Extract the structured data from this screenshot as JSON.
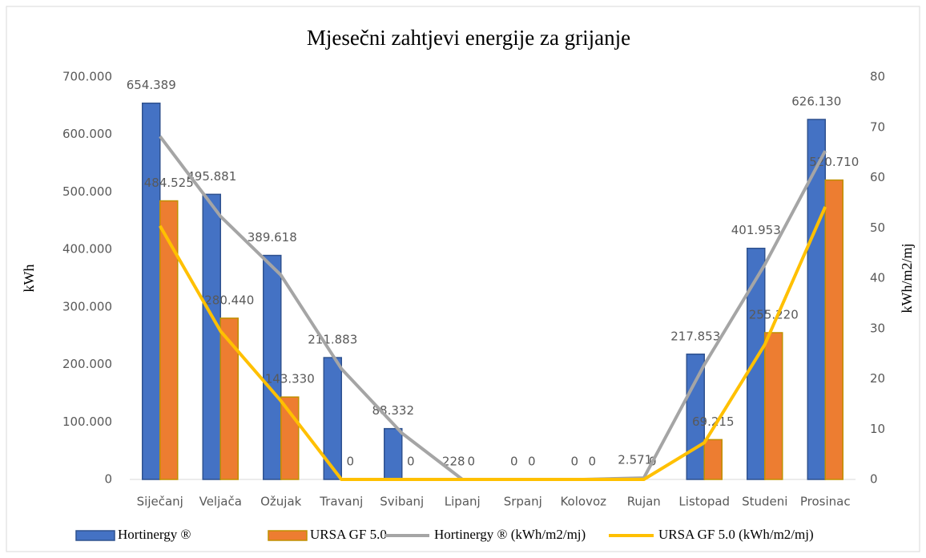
{
  "chart_data": {
    "type": "bar",
    "title": "Mjesečni zahtjevi energije za grijanje",
    "ylabel": "kWh",
    "y2label": "kWh/m2/mj",
    "categories": [
      "Siječanj",
      "Veljača",
      "Ožujak",
      "Travanj",
      "Svibanj",
      "Lipanj",
      "Srpanj",
      "Kolovoz",
      "Rujan",
      "Listopad",
      "Studeni",
      "Prosinac"
    ],
    "series": [
      {
        "name": "Hortinergy ®",
        "type": "bar",
        "color": "#4472c4",
        "values": [
          654389,
          495881,
          389618,
          211883,
          88332,
          228,
          0,
          0,
          2571,
          217853,
          401953,
          626130
        ],
        "value_labels": [
          "654.389",
          "495.881",
          "389.618",
          "211.883",
          "88.332",
          "228",
          "0",
          "0",
          "2.571",
          "217.853",
          "401.953",
          "626.130"
        ]
      },
      {
        "name": "URSA GF 5.0",
        "type": "bar",
        "color": "#ed7d31",
        "values": [
          484525,
          280440,
          143330,
          0,
          0,
          0,
          0,
          0,
          0,
          69215,
          255220,
          520710
        ],
        "value_labels": [
          "484.525",
          "280.440",
          "143.330",
          "0",
          "0",
          "0",
          "0",
          "0",
          "0",
          "69.215",
          "255.220",
          "520.710"
        ]
      },
      {
        "name": "Hortinergy ® (kWh/m2/mj)",
        "type": "line",
        "axis": "y2",
        "color": "#a5a5a5",
        "values": [
          68.2,
          52.3,
          40.6,
          22.0,
          9.2,
          0,
          0,
          0,
          0.3,
          22.8,
          42.7,
          65.3
        ]
      },
      {
        "name": "URSA GF 5.0 (kWh/m2/mj)",
        "type": "line",
        "axis": "y2",
        "color": "#ffc000",
        "values": [
          50.4,
          29.5,
          15.6,
          0,
          0,
          0,
          0,
          0,
          0,
          7.3,
          26.8,
          54.2
        ]
      }
    ],
    "ylim": [
      0,
      700000
    ],
    "yticks": [
      0,
      {
        "value": 100000,
        "label": "100.000"
      },
      {
        "value": 200000,
        "label": "200.000"
      },
      {
        "value": 300000,
        "label": "300.000"
      },
      {
        "value": 400000,
        "label": "400.000"
      },
      {
        "value": 500000,
        "label": "500.000"
      },
      {
        "value": 600000,
        "label": "600.000"
      },
      {
        "value": 700000,
        "label": "700.000"
      }
    ],
    "y2lim": [
      0,
      80
    ],
    "y2ticks": [
      0,
      10,
      20,
      30,
      40,
      50,
      60,
      70,
      80
    ],
    "grid": false,
    "legend": "bottom"
  }
}
